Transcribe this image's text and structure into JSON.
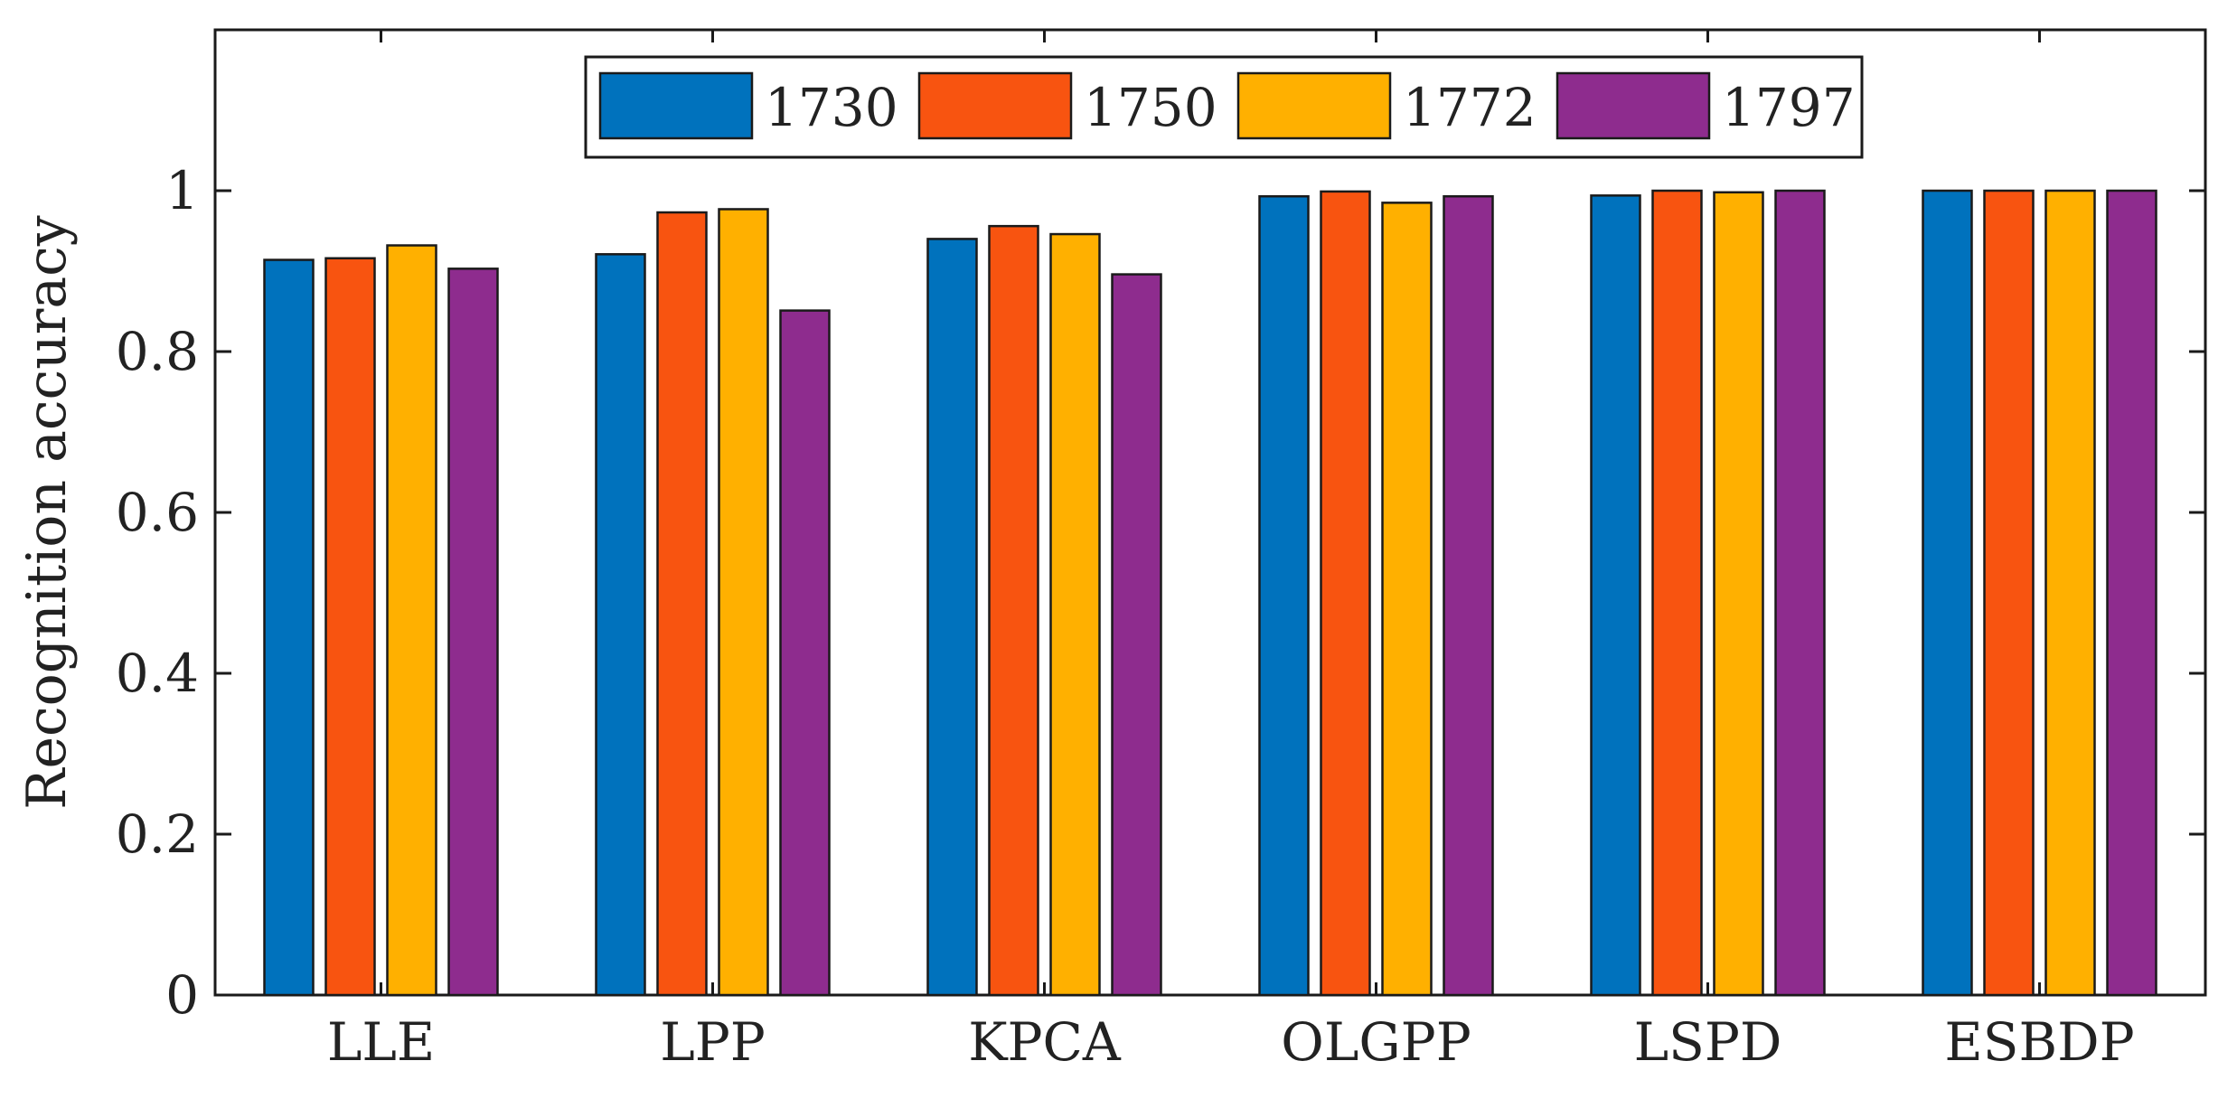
{
  "chart_data": {
    "type": "bar",
    "title": "",
    "xlabel": "",
    "ylabel": "Recognition accuracy",
    "ylim": [
      0,
      1.2
    ],
    "yticks": [
      0,
      0.2,
      0.4,
      0.6,
      0.8,
      1
    ],
    "ytick_labels": [
      "0",
      "0.2",
      "0.4",
      "0.6",
      "0.8",
      "1"
    ],
    "grid": false,
    "legend_position": "top-center",
    "legend_orientation": "horizontal",
    "categories": [
      "LLE",
      "LPP",
      "KPCA",
      "OLGPP",
      "LSPD",
      "ESBDP"
    ],
    "series": [
      {
        "name": "1730",
        "color": "#0072BD",
        "values": [
          0.914,
          0.921,
          0.94,
          0.993,
          0.994,
          1.0
        ]
      },
      {
        "name": "1750",
        "color": "#F85410",
        "values": [
          0.916,
          0.973,
          0.956,
          0.999,
          1.0,
          1.0
        ]
      },
      {
        "name": "1772",
        "color": "#FFB000",
        "values": [
          0.932,
          0.977,
          0.946,
          0.985,
          0.998,
          1.0
        ]
      },
      {
        "name": "1797",
        "color": "#8E2C8E",
        "values": [
          0.903,
          0.851,
          0.896,
          0.993,
          1.0,
          1.0
        ]
      }
    ]
  }
}
